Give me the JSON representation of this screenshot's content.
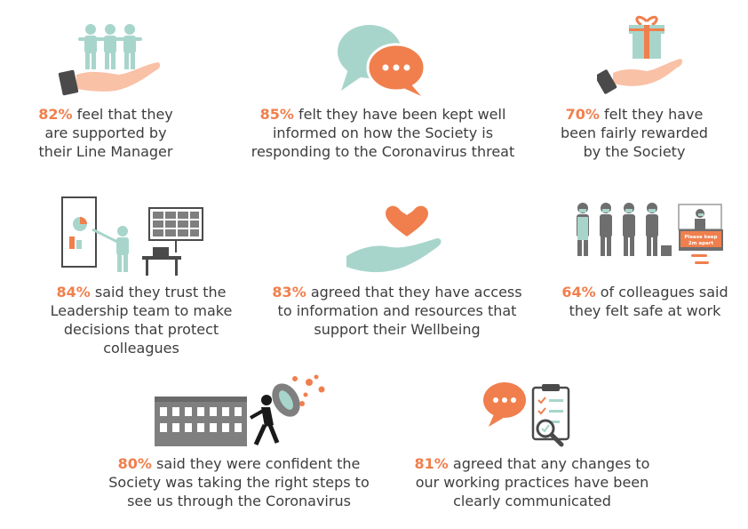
{
  "colors": {
    "accent": "#f07f4d",
    "mint": "#a8d5cb",
    "skin": "#f9c1a6",
    "gray": "#7f7f7f",
    "text": "#3d3d3d"
  },
  "stats": [
    {
      "pct": "82%",
      "lines": [
        "feel that they",
        "are supported by",
        "their Line Manager"
      ],
      "icon": "hand-with-people-icon"
    },
    {
      "pct": "85%",
      "lines": [
        "felt they have been kept well",
        "informed on how the Society is",
        "responding to the Coronavirus threat"
      ],
      "icon": "speech-bubbles-icon"
    },
    {
      "pct": "70%",
      "lines": [
        "felt they have",
        "been fairly rewarded",
        "by the Society"
      ],
      "icon": "hand-with-gift-icon"
    },
    {
      "pct": "84%",
      "lines": [
        "said they trust the",
        "Leadership team to make",
        "decisions that protect colleagues"
      ],
      "icon": "presentation-video-call-icon"
    },
    {
      "pct": "83%",
      "lines": [
        "agreed that they have access",
        "to information and resources that",
        "support their Wellbeing"
      ],
      "icon": "hand-with-heart-icon"
    },
    {
      "pct": "64%",
      "lines": [
        "of colleagues said",
        "they felt safe at work"
      ],
      "icon": "masked-colleagues-icon"
    },
    {
      "pct": "80%",
      "lines": [
        "said they were confident the",
        "Society was taking the right steps to",
        "see us through the Coronavirus"
      ],
      "icon": "shield-against-virus-icon"
    },
    {
      "pct": "81%",
      "lines": [
        "agreed that any changes to",
        "our working practices have been",
        "clearly communicated"
      ],
      "icon": "clipboard-checklist-icon"
    }
  ],
  "signage": {
    "line1": "Please keep",
    "line2": "2m apart"
  }
}
